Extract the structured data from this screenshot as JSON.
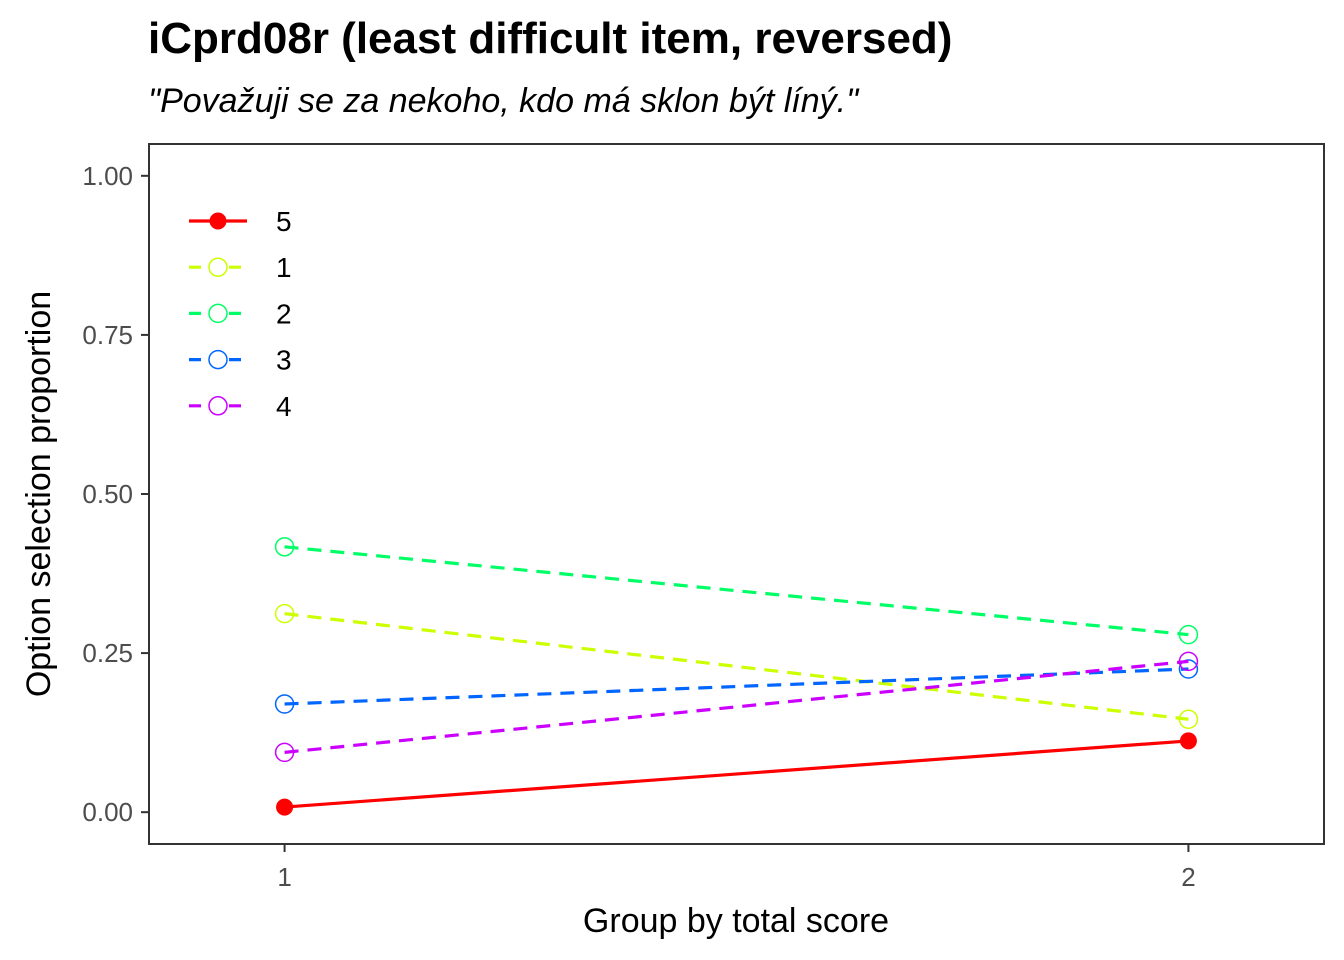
{
  "chart_data": {
    "type": "line",
    "title": "iCprd08r (least difficult item, reversed)",
    "subtitle": "\"Považuji se za nekoho, kdo má sklon být líný.\"",
    "xlabel": "Group by total score",
    "ylabel": "Option selection proportion",
    "x": [
      1,
      2
    ],
    "x_ticks": [
      "1",
      "2"
    ],
    "xlim": [
      0.85,
      2.15
    ],
    "ylim": [
      -0.05,
      1.05
    ],
    "y_ticks": [
      "0.00",
      "0.25",
      "0.50",
      "0.75",
      "1.00"
    ],
    "y_tick_values": [
      0,
      0.25,
      0.5,
      0.75,
      1.0
    ],
    "grid": false,
    "legend_position": "top-left",
    "series": [
      {
        "name": "5",
        "values": [
          0.008,
          0.112
        ],
        "color": "#ff0000",
        "style": "solid",
        "marker": "filled-circle"
      },
      {
        "name": "1",
        "values": [
          0.312,
          0.146
        ],
        "color": "#ccff00",
        "style": "dashed",
        "marker": "open-circle"
      },
      {
        "name": "2",
        "values": [
          0.417,
          0.279
        ],
        "color": "#00ff66",
        "style": "dashed",
        "marker": "open-circle"
      },
      {
        "name": "3",
        "values": [
          0.17,
          0.225
        ],
        "color": "#0066ff",
        "style": "dashed",
        "marker": "open-circle"
      },
      {
        "name": "4",
        "values": [
          0.094,
          0.237
        ],
        "color": "#cc00ff",
        "style": "dashed",
        "marker": "open-circle"
      }
    ]
  }
}
